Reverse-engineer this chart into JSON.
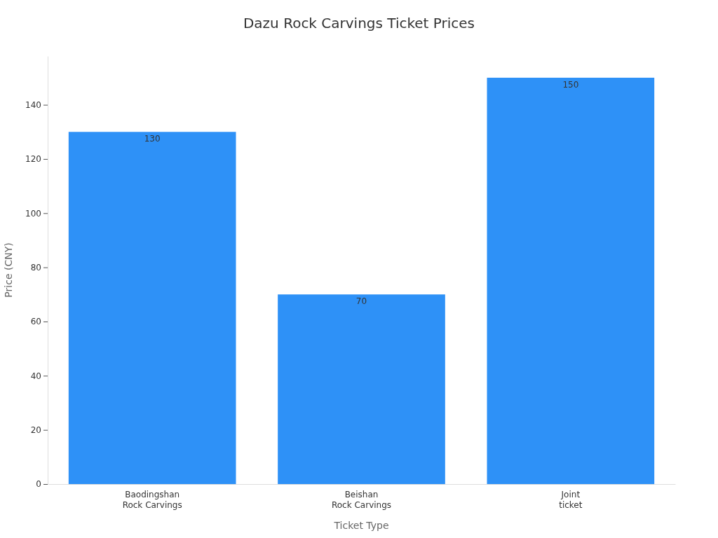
{
  "chart_data": {
    "type": "bar",
    "title": "Dazu Rock Carvings Ticket Prices",
    "xlabel": "Ticket Type",
    "ylabel": "Price (CNY)",
    "categories": [
      "Baodingshan Rock Carvings",
      "Beishan Rock Carvings",
      "Joint ticket"
    ],
    "values": [
      130,
      70,
      150
    ],
    "color": "#2e91f7",
    "ylim": [
      0,
      158
    ],
    "yticks": [
      0,
      20,
      40,
      60,
      80,
      100,
      120,
      140
    ],
    "grid": false,
    "data_labels": true
  }
}
